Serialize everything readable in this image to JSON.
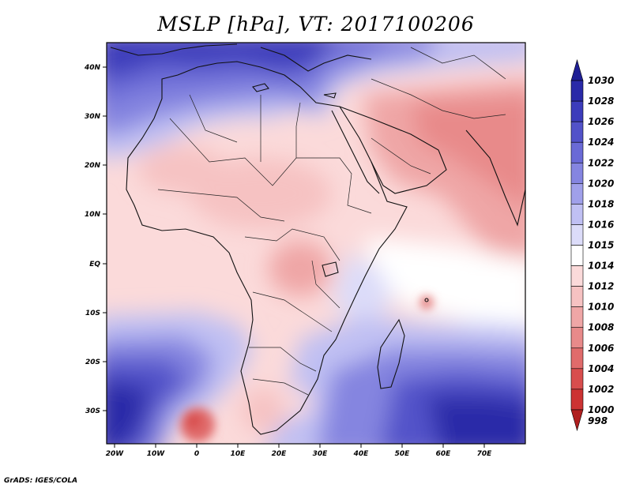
{
  "title": "MSLP [hPa], VT: 2017100206",
  "footer": "GrADS: IGES/COLA",
  "axes": {
    "lon_ticks": [
      "20W",
      "10W",
      "0",
      "10E",
      "20E",
      "30E",
      "40E",
      "50E",
      "60E",
      "70E"
    ],
    "lat_ticks": [
      "40N",
      "30N",
      "20N",
      "10N",
      "EQ",
      "10S",
      "20S",
      "30S"
    ]
  },
  "colorbar": {
    "levels": [
      "1030",
      "1028",
      "1026",
      "1024",
      "1022",
      "1020",
      "1018",
      "1016",
      "1015",
      "1014",
      "1012",
      "1010",
      "1008",
      "1006",
      "1004",
      "1002",
      "1000",
      "998"
    ],
    "colors": [
      "#1f1f95",
      "#2a2aa8",
      "#3c3cbb",
      "#5252c9",
      "#6a6ad6",
      "#8585e0",
      "#a0a0ea",
      "#c0c0f3",
      "#dcdcf9",
      "#ffffff",
      "#fbdada",
      "#f6c2c2",
      "#efa6a6",
      "#e88a8a",
      "#e06b6b",
      "#d84d4d",
      "#cc3333",
      "#b01f1f"
    ]
  }
}
